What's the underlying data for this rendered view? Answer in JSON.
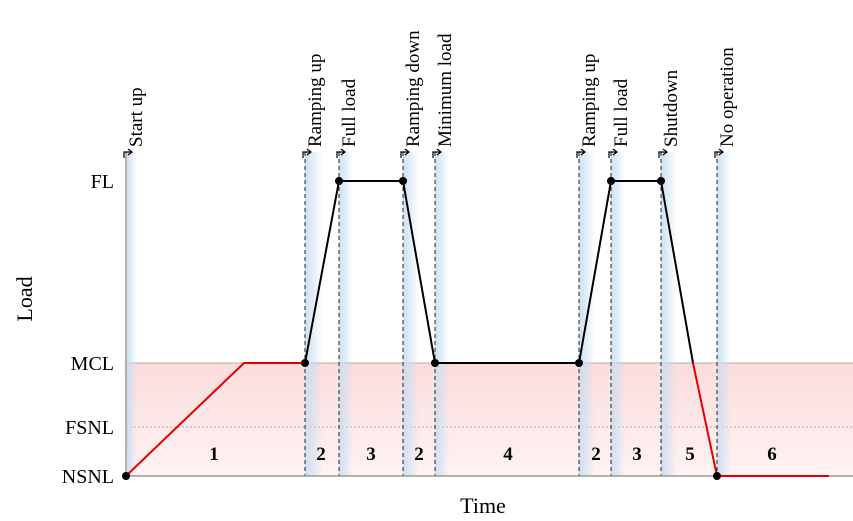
{
  "diagram": {
    "y_axis_label": "Load",
    "x_axis_label": "Time",
    "levels": [
      {
        "key": "fl",
        "label": "FL"
      },
      {
        "key": "mcl",
        "label": "MCL"
      },
      {
        "key": "fsnl",
        "label": "FSNL"
      },
      {
        "key": "nsnl",
        "label": "NSNL"
      }
    ],
    "events": [
      {
        "key": "start-up",
        "label": "Start up"
      },
      {
        "key": "ramping-up-1",
        "label": "Ramping up"
      },
      {
        "key": "full-load-1",
        "label": "Full load"
      },
      {
        "key": "ramping-down",
        "label": "Ramping down"
      },
      {
        "key": "minimum-load",
        "label": "Minimum load"
      },
      {
        "key": "ramping-up-2",
        "label": "Ramping up"
      },
      {
        "key": "full-load-2",
        "label": "Full load"
      },
      {
        "key": "shutdown",
        "label": "Shutdown"
      },
      {
        "key": "no-operation",
        "label": "No operation"
      }
    ],
    "phases": [
      {
        "key": "phase-1",
        "label": "1"
      },
      {
        "key": "phase-2a",
        "label": "2"
      },
      {
        "key": "phase-3a",
        "label": "3"
      },
      {
        "key": "phase-2b",
        "label": "2"
      },
      {
        "key": "phase-4",
        "label": "4"
      },
      {
        "key": "phase-2c",
        "label": "2"
      },
      {
        "key": "phase-3b",
        "label": "3"
      },
      {
        "key": "phase-5",
        "label": "5"
      },
      {
        "key": "phase-6",
        "label": "6"
      }
    ],
    "colors": {
      "red_line": "#e30000",
      "black_line": "#000000",
      "sub_mcl_band": "#fde8e8",
      "event_band": "#dbe9f7",
      "axis": "#999999"
    }
  }
}
